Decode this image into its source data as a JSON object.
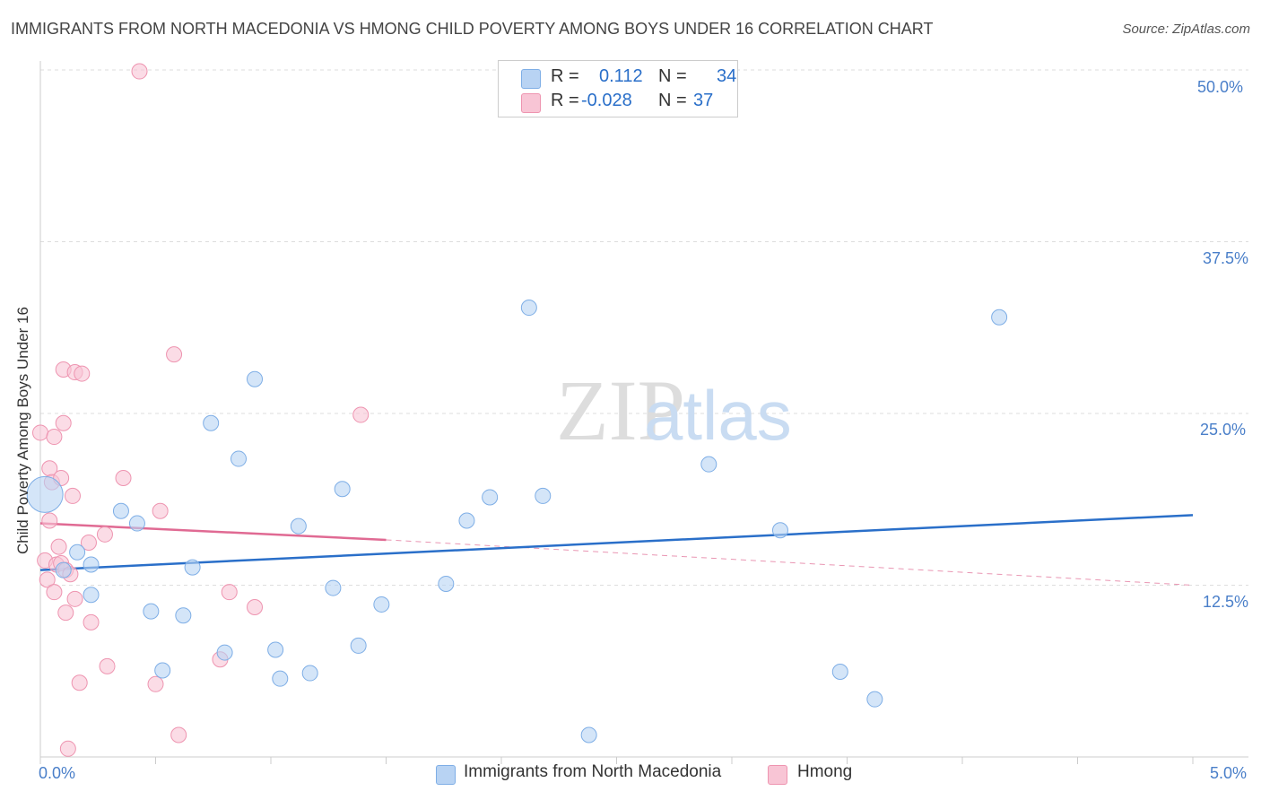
{
  "title": "IMMIGRANTS FROM NORTH MACEDONIA VS HMONG CHILD POVERTY AMONG BOYS UNDER 16 CORRELATION CHART",
  "source": "Source: ZipAtlas.com",
  "watermark": {
    "zip": "ZIP",
    "atlas": "atlas"
  },
  "legend": {
    "r_label": "R =",
    "n_label": "N =",
    "rows": [
      {
        "name": "Immigrants from North Macedonia",
        "r": "0.112",
        "n": "34"
      },
      {
        "name": "Hmong",
        "r": "-0.028",
        "n": "37"
      }
    ]
  },
  "colors": {
    "blue_fill": "#b8d3f3",
    "blue_stroke": "#7eaee6",
    "blue_line": "#2a6fc9",
    "pink_fill": "#f8c5d5",
    "pink_stroke": "#ee94b0",
    "pink_line": "#e06a93",
    "tick_text": "#4a7fc9"
  },
  "chart_data": {
    "type": "scatter",
    "title": "IMMIGRANTS FROM NORTH MACEDONIA VS HMONG CHILD POVERTY AMONG BOYS UNDER 16 CORRELATION CHART",
    "xlabel": "",
    "ylabel": "Child Poverty Among Boys Under 16",
    "xlim": [
      0,
      5
    ],
    "ylim": [
      0,
      50
    ],
    "x_tick_labels": [
      "0.0%",
      "5.0%"
    ],
    "y_tick_labels": [
      "50.0%",
      "37.5%",
      "25.0%",
      "12.5%"
    ],
    "y_tick_values": [
      50,
      37.5,
      25,
      12.5
    ],
    "series": [
      {
        "name": "Immigrants from North Macedonia",
        "color": "blue",
        "trend": {
          "x": [
            0,
            5
          ],
          "y": [
            13.6,
            17.6
          ]
        },
        "points": [
          {
            "x": 0.02,
            "y": 19.1,
            "big": true
          },
          {
            "x": 0.16,
            "y": 14.9
          },
          {
            "x": 0.1,
            "y": 13.6
          },
          {
            "x": 0.22,
            "y": 14.0
          },
          {
            "x": 0.22,
            "y": 11.8
          },
          {
            "x": 0.35,
            "y": 17.9
          },
          {
            "x": 0.42,
            "y": 17.0
          },
          {
            "x": 0.48,
            "y": 10.6
          },
          {
            "x": 0.53,
            "y": 6.3
          },
          {
            "x": 0.62,
            "y": 10.3
          },
          {
            "x": 0.66,
            "y": 13.8
          },
          {
            "x": 0.74,
            "y": 24.3
          },
          {
            "x": 0.8,
            "y": 7.6
          },
          {
            "x": 0.86,
            "y": 21.7
          },
          {
            "x": 0.93,
            "y": 27.5
          },
          {
            "x": 1.02,
            "y": 7.8
          },
          {
            "x": 1.04,
            "y": 5.7
          },
          {
            "x": 1.12,
            "y": 16.8
          },
          {
            "x": 1.17,
            "y": 6.1
          },
          {
            "x": 1.27,
            "y": 12.3
          },
          {
            "x": 1.31,
            "y": 19.5
          },
          {
            "x": 1.38,
            "y": 8.1
          },
          {
            "x": 1.48,
            "y": 11.1
          },
          {
            "x": 1.76,
            "y": 12.6
          },
          {
            "x": 1.85,
            "y": 17.2
          },
          {
            "x": 1.95,
            "y": 18.9
          },
          {
            "x": 2.12,
            "y": 32.7
          },
          {
            "x": 2.18,
            "y": 19.0
          },
          {
            "x": 2.38,
            "y": 1.6
          },
          {
            "x": 2.9,
            "y": 21.3
          },
          {
            "x": 3.21,
            "y": 16.5
          },
          {
            "x": 3.47,
            "y": 6.2
          },
          {
            "x": 3.62,
            "y": 4.2
          },
          {
            "x": 4.16,
            "y": 32.0
          }
        ]
      },
      {
        "name": "Hmong",
        "color": "pink",
        "trend": {
          "x": [
            0,
            1.5
          ],
          "y": [
            17.0,
            15.8
          ]
        },
        "trend_dashed": {
          "x": [
            1.5,
            5
          ],
          "y": [
            15.8,
            12.5
          ]
        },
        "points": [
          {
            "x": 0.0,
            "y": 23.6
          },
          {
            "x": 0.02,
            "y": 14.3
          },
          {
            "x": 0.03,
            "y": 12.9
          },
          {
            "x": 0.04,
            "y": 17.2
          },
          {
            "x": 0.04,
            "y": 21.0
          },
          {
            "x": 0.05,
            "y": 20.0
          },
          {
            "x": 0.06,
            "y": 23.3
          },
          {
            "x": 0.06,
            "y": 12.0
          },
          {
            "x": 0.07,
            "y": 14.0
          },
          {
            "x": 0.08,
            "y": 15.3
          },
          {
            "x": 0.09,
            "y": 14.1
          },
          {
            "x": 0.09,
            "y": 20.3
          },
          {
            "x": 0.1,
            "y": 28.2
          },
          {
            "x": 0.1,
            "y": 24.3
          },
          {
            "x": 0.11,
            "y": 13.6
          },
          {
            "x": 0.11,
            "y": 10.5
          },
          {
            "x": 0.12,
            "y": 0.6
          },
          {
            "x": 0.13,
            "y": 13.3
          },
          {
            "x": 0.14,
            "y": 19.0
          },
          {
            "x": 0.15,
            "y": 11.5
          },
          {
            "x": 0.15,
            "y": 28.0
          },
          {
            "x": 0.17,
            "y": 5.4
          },
          {
            "x": 0.18,
            "y": 27.9
          },
          {
            "x": 0.21,
            "y": 15.6
          },
          {
            "x": 0.22,
            "y": 9.8
          },
          {
            "x": 0.28,
            "y": 16.2
          },
          {
            "x": 0.29,
            "y": 6.6
          },
          {
            "x": 0.36,
            "y": 20.3
          },
          {
            "x": 0.43,
            "y": 49.9
          },
          {
            "x": 0.5,
            "y": 5.3
          },
          {
            "x": 0.52,
            "y": 17.9
          },
          {
            "x": 0.58,
            "y": 29.3
          },
          {
            "x": 0.6,
            "y": 1.6
          },
          {
            "x": 0.78,
            "y": 7.1
          },
          {
            "x": 0.82,
            "y": 12.0
          },
          {
            "x": 0.93,
            "y": 10.9
          },
          {
            "x": 1.39,
            "y": 24.9
          }
        ]
      }
    ]
  }
}
